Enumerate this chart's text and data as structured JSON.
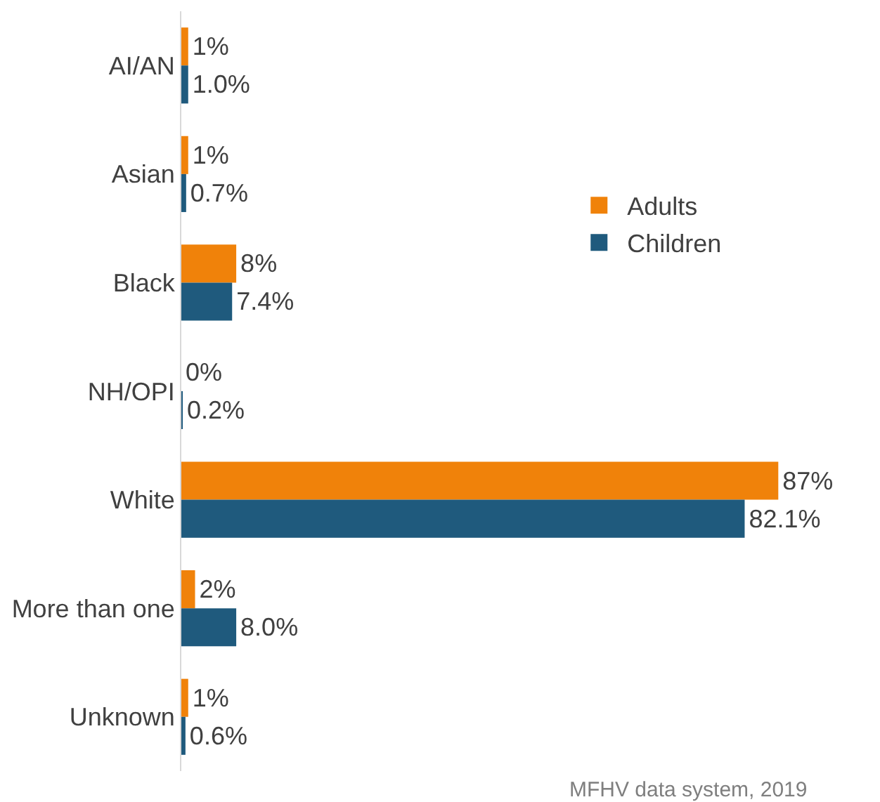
{
  "chart_data": {
    "type": "bar",
    "orientation": "horizontal",
    "categories": [
      "AI/AN",
      "Asian",
      "Black",
      "NH/OPI",
      "White",
      "More than one",
      "Unknown"
    ],
    "series": [
      {
        "name": "Adults",
        "color": "#f0820a",
        "values": [
          1,
          1,
          8,
          0,
          87,
          2,
          1
        ],
        "value_labels": [
          "1%",
          "1%",
          "8%",
          "0%",
          "87%",
          "2%",
          "1%"
        ]
      },
      {
        "name": "Children",
        "color": "#1f5a7d",
        "values": [
          1.0,
          0.7,
          7.4,
          0.2,
          82.1,
          8.0,
          0.6
        ],
        "value_labels": [
          "1.0%",
          "0.7%",
          "7.4%",
          "0.2%",
          "82.1%",
          "8.0%",
          "0.6%"
        ]
      }
    ],
    "tick_labels": "y",
    "legend": "right",
    "annotations": [
      "MFHV data system, 2019"
    ]
  }
}
